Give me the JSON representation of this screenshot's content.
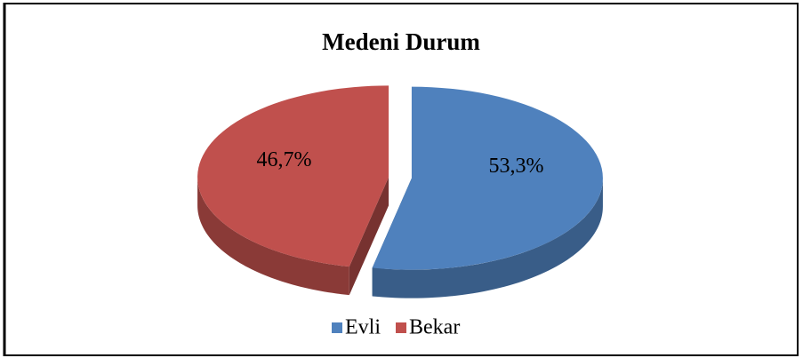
{
  "chart_data": {
    "type": "pie",
    "title": "Medeni Durum",
    "categories": [
      "Evli",
      "Bekar"
    ],
    "values": [
      53.3,
      46.7
    ],
    "value_labels": [
      "53,3%",
      "46,7%"
    ],
    "colors": [
      "#4f81bd",
      "#c0504d"
    ],
    "legend": "bottom"
  }
}
